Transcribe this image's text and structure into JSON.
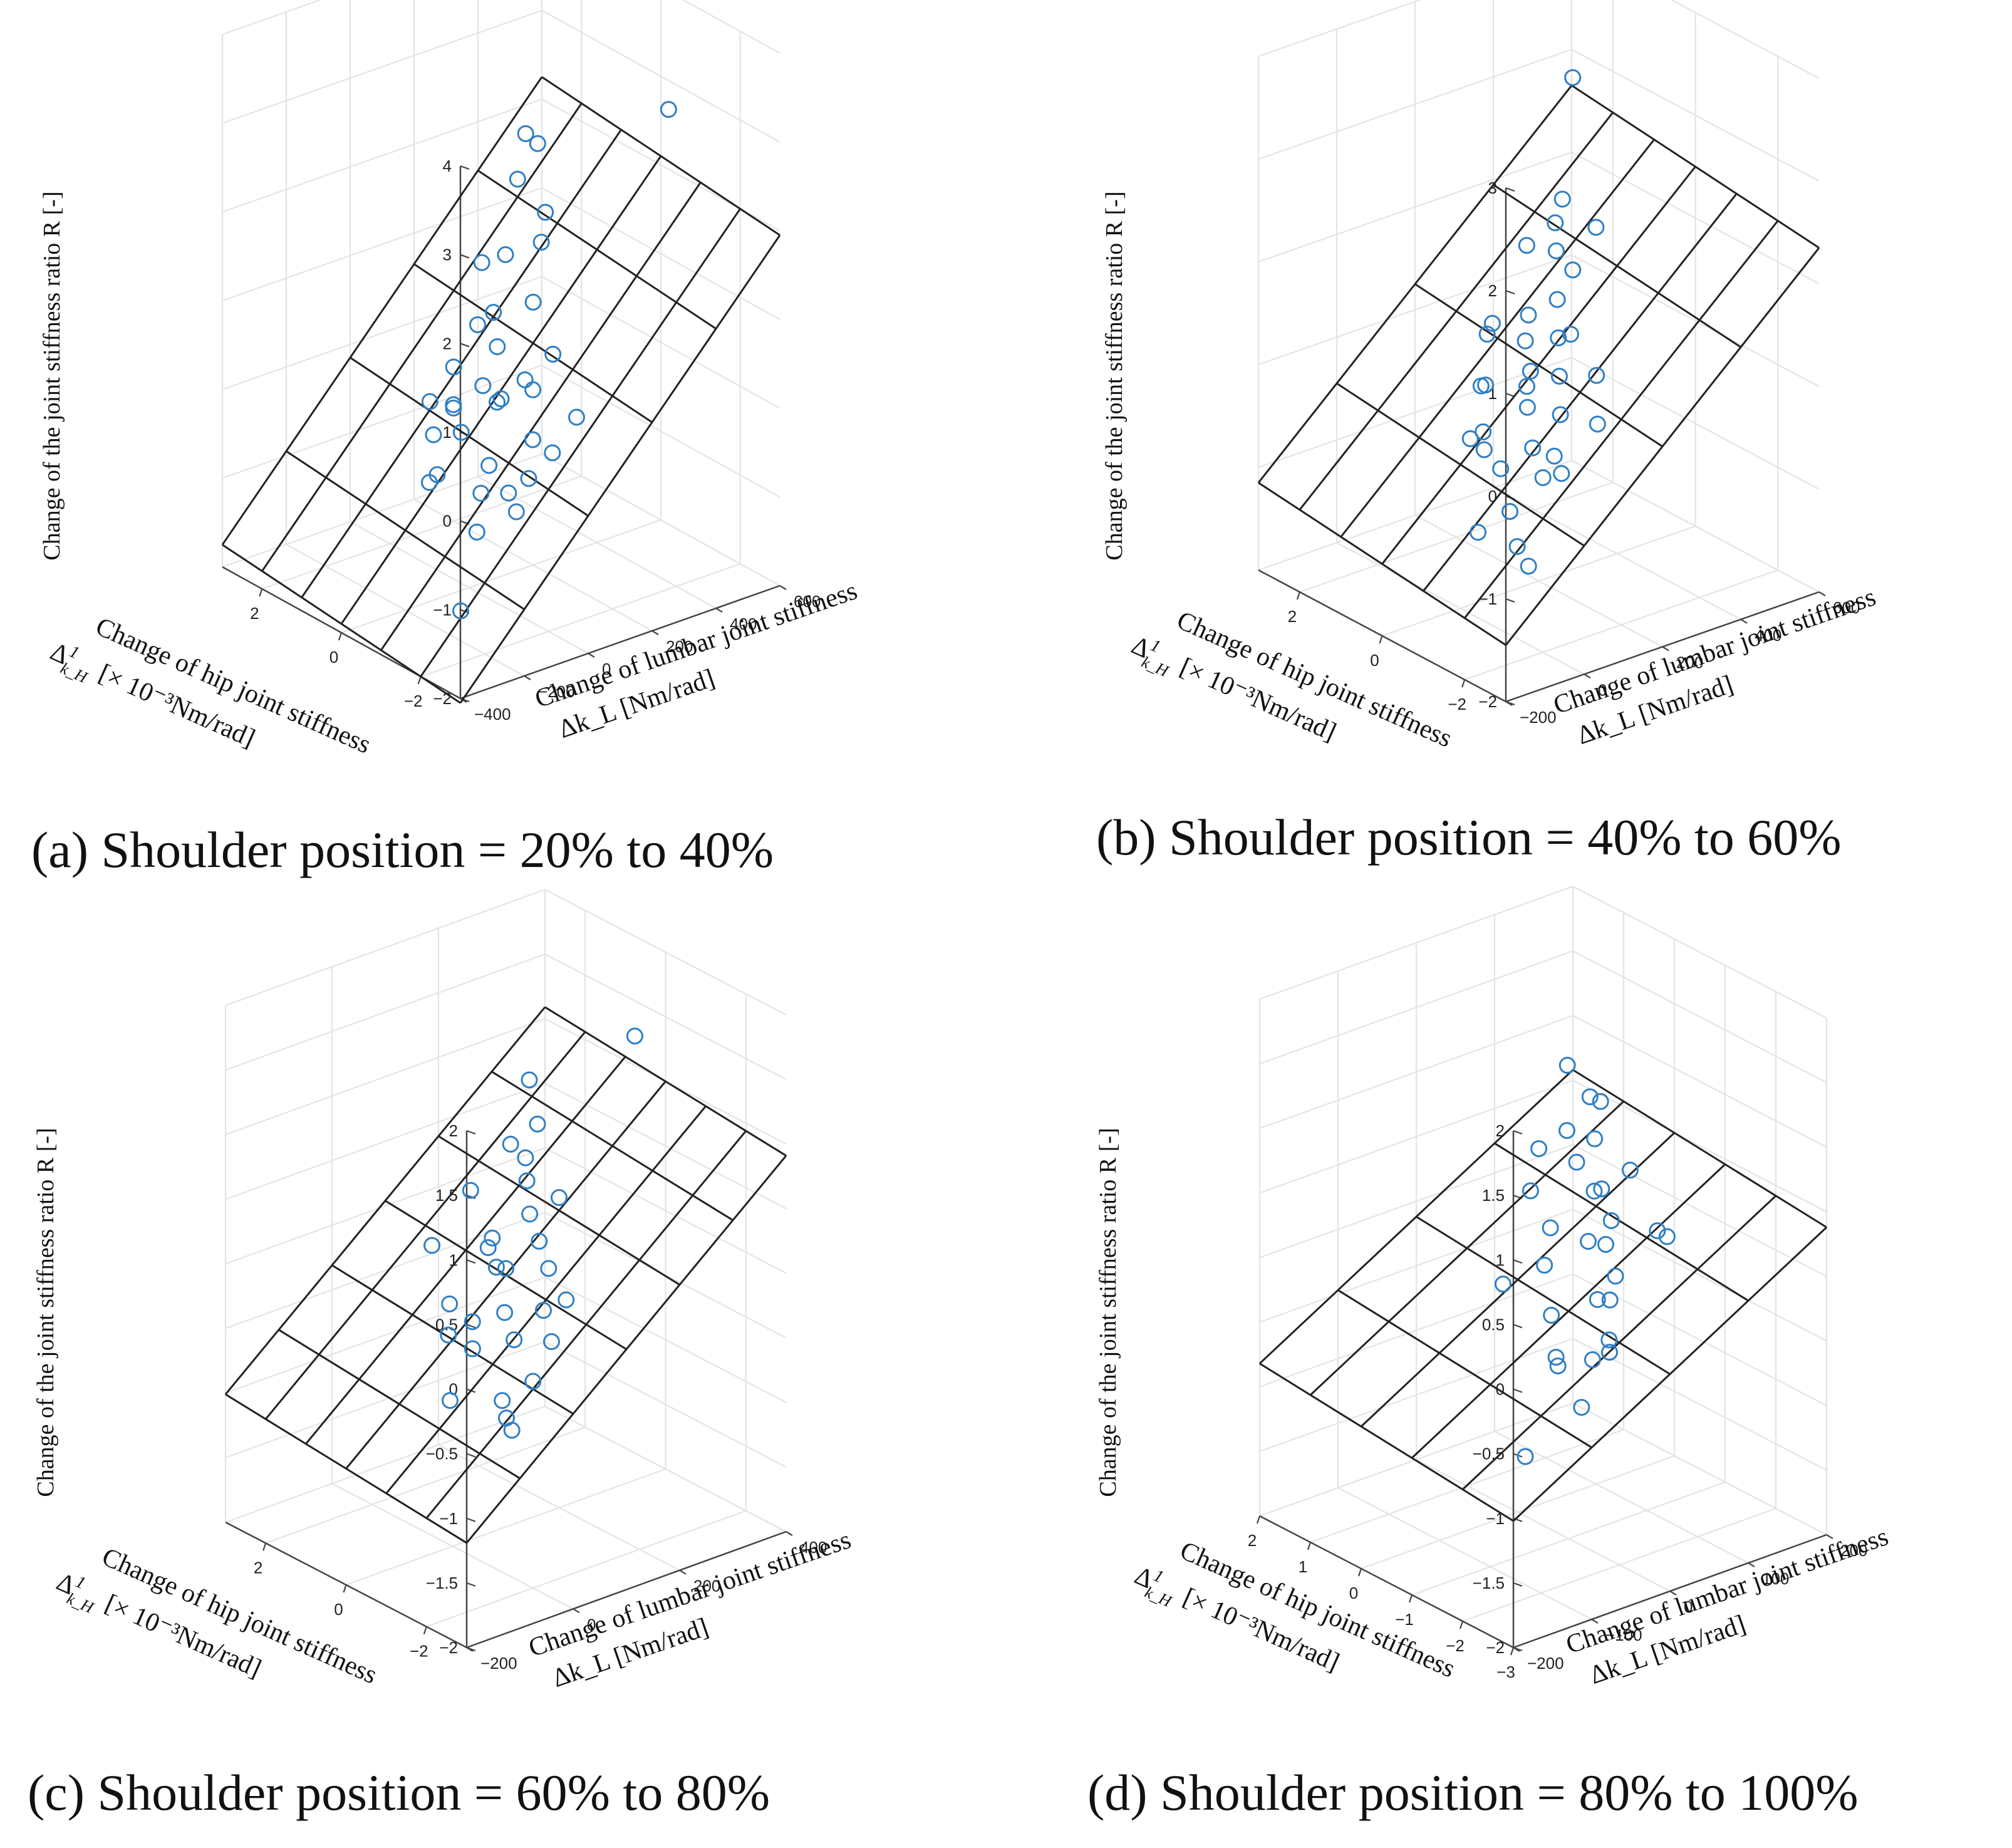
{
  "colors": {
    "marker": "#2f7fc4",
    "grid": "#e4e4e4",
    "axis": "#444444",
    "plane": "#222222"
  },
  "chart_data": [
    {
      "type": "scatter",
      "subtype": "3d-scatter-with-fitted-plane",
      "caption": "(a) Shoulder position = 20% to 40%",
      "zlabel": "Change of the joint stiffness ratio R [-]",
      "xlabel": "Change of hip joint stiffness",
      "xunit_prefix": "Δ",
      "xunit_num": "1",
      "xunit_den": "k_H",
      "xunit_rest": "[× 10⁻³Nm/rad]",
      "ylabel": "Change of lumbar joint stiffness",
      "yunit": "Δk_L [Nm/rad]",
      "xlim": [
        -3,
        3
      ],
      "ylim": [
        -400,
        600
      ],
      "zlim": [
        -2,
        4
      ],
      "xticks": [
        -2,
        0,
        2
      ],
      "xtick_labels": [
        "−2",
        "0",
        "2"
      ],
      "yticks": [
        -400,
        -200,
        0,
        200,
        400,
        600
      ],
      "ytick_labels": [
        "−400",
        "−200",
        "0",
        "200",
        "400",
        "600"
      ],
      "zticks": [
        -2,
        -1,
        0,
        1,
        2,
        3,
        4
      ],
      "ztick_labels": [
        "−2",
        "−1",
        "0",
        "1",
        "2",
        "3",
        "4"
      ],
      "plane": {
        "a": 0.05,
        "b": 0.004,
        "c": -0.3,
        "xgrid": [
          -3,
          -2,
          -1,
          0,
          1,
          2,
          3
        ],
        "ygrid": [
          -400,
          -200,
          0,
          200,
          400,
          600
        ]
      },
      "points": [
        {
          "x": -2.8,
          "y": -200,
          "z": -0.2
        },
        {
          "x": -2.2,
          "y": -150,
          "z": -0.2
        },
        {
          "x": -2.5,
          "y": -50,
          "z": 0.2
        },
        {
          "x": -1.8,
          "y": -250,
          "z": -1.5
        },
        {
          "x": -1.5,
          "y": 0,
          "z": -0.4
        },
        {
          "x": -1.2,
          "y": 50,
          "z": -0.1
        },
        {
          "x": -1.0,
          "y": -100,
          "z": -1.0
        },
        {
          "x": -0.8,
          "y": 100,
          "z": 0.3
        },
        {
          "x": -0.5,
          "y": 0,
          "z": -0.5
        },
        {
          "x": -0.3,
          "y": 50,
          "z": 0.1
        },
        {
          "x": 0.0,
          "y": 100,
          "z": 0.0
        },
        {
          "x": 0.2,
          "y": 0,
          "z": -0.3
        },
        {
          "x": 0.5,
          "y": 150,
          "z": 0.4
        },
        {
          "x": 0.8,
          "y": 50,
          "z": -0.2
        },
        {
          "x": 1.0,
          "y": 200,
          "z": 0.6
        },
        {
          "x": 1.2,
          "y": 100,
          "z": -0.4
        },
        {
          "x": 1.5,
          "y": 300,
          "z": 1.0
        },
        {
          "x": 1.8,
          "y": 250,
          "z": 0.2
        },
        {
          "x": 2.0,
          "y": 400,
          "z": 1.6
        },
        {
          "x": 2.2,
          "y": 450,
          "z": 2.0
        },
        {
          "x": 2.5,
          "y": 350,
          "z": 0.6
        },
        {
          "x": -1.0,
          "y": 500,
          "z": 3.0
        },
        {
          "x": 0.0,
          "y": -100,
          "z": -0.6
        },
        {
          "x": -0.5,
          "y": 200,
          "z": 0.5
        },
        {
          "x": 0.4,
          "y": 250,
          "z": 0.8
        },
        {
          "x": 1.0,
          "y": 350,
          "z": 1.2
        },
        {
          "x": 2.6,
          "y": 200,
          "z": -0.8
        },
        {
          "x": 0.6,
          "y": -50,
          "z": -0.9
        },
        {
          "x": -0.2,
          "y": 150,
          "z": 0.2
        },
        {
          "x": 0.3,
          "y": 80,
          "z": 0.1
        },
        {
          "x": -1.5,
          "y": 150,
          "z": 0.1
        },
        {
          "x": 1.6,
          "y": 150,
          "z": -0.1
        },
        {
          "x": 2.3,
          "y": 500,
          "z": 1.8
        },
        {
          "x": 0.9,
          "y": 0,
          "z": -0.5
        },
        {
          "x": -0.7,
          "y": -50,
          "z": -0.7
        },
        {
          "x": 1.3,
          "y": 400,
          "z": 1.4
        }
      ]
    },
    {
      "type": "scatter",
      "subtype": "3d-scatter-with-fitted-plane",
      "caption": "(b) Shoulder position = 40% to 60%",
      "zlabel": "Change of the joint stiffness ratio R [-]",
      "xlabel": "Change of hip joint stiffness",
      "xunit_prefix": "Δ",
      "xunit_num": "1",
      "xunit_den": "k_H",
      "xunit_rest": "[× 10⁻³Nm/rad]",
      "ylabel": "Change of lumbar joint stiffness",
      "yunit": "Δk_L [Nm/rad]",
      "xlim": [
        -3,
        3
      ],
      "ylim": [
        -200,
        600
      ],
      "zlim": [
        -2,
        3
      ],
      "xticks": [
        -2,
        0,
        2
      ],
      "xtick_labels": [
        "−2",
        "0",
        "2"
      ],
      "yticks": [
        -200,
        0,
        200,
        400,
        600
      ],
      "ytick_labels": [
        "−200",
        "0",
        "200",
        "400",
        "600"
      ],
      "zticks": [
        -2,
        -1,
        0,
        1,
        2,
        3
      ],
      "ztick_labels": [
        "−2",
        "−1",
        "0",
        "1",
        "2",
        "3"
      ],
      "plane": {
        "a": 0.05,
        "b": 0.0035,
        "c": -0.6,
        "xgrid": [
          -3,
          -2,
          -1,
          0,
          1,
          2,
          3
        ],
        "ygrid": [
          -200,
          0,
          200,
          400,
          600
        ]
      },
      "points": [
        {
          "x": -2.8,
          "y": -150,
          "z": -0.6
        },
        {
          "x": -2.6,
          "y": -100,
          "z": -0.9
        },
        {
          "x": -2.0,
          "y": 0,
          "z": -0.3
        },
        {
          "x": -1.8,
          "y": 50,
          "z": -0.2
        },
        {
          "x": -1.5,
          "y": 100,
          "z": -0.5
        },
        {
          "x": -1.2,
          "y": 0,
          "z": -0.8
        },
        {
          "x": -1.0,
          "y": 150,
          "z": -0.1
        },
        {
          "x": -0.8,
          "y": 100,
          "z": -0.4
        },
        {
          "x": -0.5,
          "y": 200,
          "z": 0.1
        },
        {
          "x": -0.2,
          "y": 150,
          "z": -0.2
        },
        {
          "x": 0.0,
          "y": 250,
          "z": 0.3
        },
        {
          "x": 0.2,
          "y": 200,
          "z": 0.0
        },
        {
          "x": 0.5,
          "y": 300,
          "z": 0.5
        },
        {
          "x": 0.8,
          "y": 250,
          "z": 0.1
        },
        {
          "x": 1.0,
          "y": 350,
          "z": 0.8
        },
        {
          "x": 1.2,
          "y": 300,
          "z": 0.2
        },
        {
          "x": 1.5,
          "y": 400,
          "z": 0.9
        },
        {
          "x": 1.8,
          "y": 450,
          "z": 1.0
        },
        {
          "x": 2.5,
          "y": 550,
          "z": 1.9
        },
        {
          "x": 2.2,
          "y": 300,
          "z": -0.2
        },
        {
          "x": -0.5,
          "y": 50,
          "z": -0.6
        },
        {
          "x": 0.4,
          "y": 100,
          "z": -0.5
        },
        {
          "x": 1.4,
          "y": 200,
          "z": -0.4
        },
        {
          "x": -1.4,
          "y": 200,
          "z": 0.3
        },
        {
          "x": 0.6,
          "y": 350,
          "z": 0.7
        },
        {
          "x": -0.9,
          "y": -50,
          "z": -1.0
        },
        {
          "x": 0.1,
          "y": 180,
          "z": -0.1
        },
        {
          "x": -0.3,
          "y": 250,
          "z": 0.4
        },
        {
          "x": 1.1,
          "y": 180,
          "z": -0.3
        },
        {
          "x": 2.0,
          "y": 380,
          "z": 0.6
        },
        {
          "x": -1.9,
          "y": 150,
          "z": 0.0
        },
        {
          "x": 0.9,
          "y": 120,
          "z": -0.7
        },
        {
          "x": 1.6,
          "y": 250,
          "z": 0.1
        },
        {
          "x": -0.1,
          "y": 50,
          "z": -0.5
        },
        {
          "x": 0.7,
          "y": 420,
          "z": 1.0
        }
      ]
    },
    {
      "type": "scatter",
      "subtype": "3d-scatter-with-fitted-plane",
      "caption": "(c) Shoulder position = 60% to 80%",
      "zlabel": "Change of the joint stiffness ratio R [-]",
      "xlabel": "Change of hip joint stiffness",
      "xunit_prefix": "Δ",
      "xunit_num": "1",
      "xunit_den": "k_H",
      "xunit_rest": "[× 10⁻³Nm/rad]",
      "ylabel": "Change of lumbar joint stiffness",
      "yunit": "Δk_L [Nm/rad]",
      "xlim": [
        -3,
        3
      ],
      "ylim": [
        -200,
        400
      ],
      "zlim": [
        -2,
        2
      ],
      "xticks": [
        -2,
        0,
        2
      ],
      "xtick_labels": [
        "−2",
        "0",
        "2"
      ],
      "yticks": [
        -200,
        0,
        200,
        400
      ],
      "ytick_labels": [
        "−200",
        "0",
        "200",
        "400"
      ],
      "zticks": [
        -2,
        -1.5,
        -1,
        -0.5,
        0,
        0.5,
        1,
        1.5,
        2
      ],
      "ztick_labels": [
        "−2",
        "−1.5",
        "−1",
        "−0.5",
        "0",
        "0.5",
        "1",
        "1.5",
        "2"
      ],
      "plane": {
        "a": 0.03,
        "b": 0.0035,
        "c": -0.4,
        "xgrid": [
          -3,
          -2,
          -1,
          0,
          1,
          2,
          3
        ],
        "ygrid": [
          -200,
          -100,
          0,
          100,
          200,
          300,
          400
        ]
      },
      "points": [
        {
          "x": -2.8,
          "y": -100,
          "z": -0.5
        },
        {
          "x": -2.4,
          "y": -80,
          "z": -0.5
        },
        {
          "x": -2.0,
          "y": 0,
          "z": -0.4
        },
        {
          "x": -1.8,
          "y": 50,
          "z": -0.2
        },
        {
          "x": -1.5,
          "y": -20,
          "z": -0.6
        },
        {
          "x": -1.2,
          "y": 80,
          "z": -0.1
        },
        {
          "x": -1.0,
          "y": 40,
          "z": -0.3
        },
        {
          "x": -0.8,
          "y": 120,
          "z": 0.1
        },
        {
          "x": -0.5,
          "y": 60,
          "z": -0.2
        },
        {
          "x": -0.3,
          "y": 140,
          "z": 0.2
        },
        {
          "x": 0.0,
          "y": 100,
          "z": 0.0
        },
        {
          "x": 0.2,
          "y": 160,
          "z": 0.3
        },
        {
          "x": 0.5,
          "y": 120,
          "z": -0.1
        },
        {
          "x": 0.8,
          "y": 200,
          "z": 0.4
        },
        {
          "x": 1.0,
          "y": 150,
          "z": 0.0
        },
        {
          "x": 1.2,
          "y": 250,
          "z": 0.7
        },
        {
          "x": 1.5,
          "y": 180,
          "z": -0.2
        },
        {
          "x": 1.8,
          "y": 280,
          "z": 0.9
        },
        {
          "x": 2.2,
          "y": 200,
          "z": 0.1
        },
        {
          "x": 2.5,
          "y": 150,
          "z": -0.3
        },
        {
          "x": 0.5,
          "y": 380,
          "z": 1.3
        },
        {
          "x": -0.6,
          "y": -50,
          "z": -0.7
        },
        {
          "x": 0.3,
          "y": 60,
          "z": -0.4
        },
        {
          "x": 1.4,
          "y": 100,
          "z": -0.5
        },
        {
          "x": -1.5,
          "y": 100,
          "z": 0.0
        },
        {
          "x": 0.0,
          "y": 200,
          "z": 0.4
        },
        {
          "x": 0.9,
          "y": 60,
          "z": -0.6
        },
        {
          "x": 2.0,
          "y": 260,
          "z": 0.4
        },
        {
          "x": -0.1,
          "y": 30,
          "z": -0.5
        },
        {
          "x": 1.1,
          "y": 220,
          "z": 0.5
        }
      ]
    },
    {
      "type": "scatter",
      "subtype": "3d-scatter-with-fitted-plane",
      "caption": "(d) Shoulder position = 80% to 100%",
      "zlabel": "Change of the joint stiffness ratio R [-]",
      "xlabel": "Change of hip joint stiffness",
      "xunit_prefix": "Δ",
      "xunit_num": "1",
      "xunit_den": "k_H",
      "xunit_rest": "[× 10⁻³Nm/rad]",
      "ylabel": "Change of lumbar joint stiffness",
      "yunit": "Δk_L [Nm/rad]",
      "xlim": [
        -3,
        2
      ],
      "ylim": [
        -200,
        200
      ],
      "zlim": [
        -2,
        2
      ],
      "xticks": [
        -3,
        -2,
        -1,
        0,
        1,
        2
      ],
      "xtick_labels": [
        "−3",
        "−2",
        "−1",
        "0",
        "1",
        "2"
      ],
      "yticks": [
        -200,
        -100,
        0,
        100,
        200
      ],
      "ytick_labels": [
        "−200",
        "−100",
        "0",
        "100",
        "200"
      ],
      "zticks": [
        -2,
        -1.5,
        -1,
        -0.5,
        0,
        0.5,
        1,
        1.5,
        2
      ],
      "ztick_labels": [
        "−2",
        "−1.5",
        "−1",
        "−0.5",
        "0",
        "0.5",
        "1",
        "1.5",
        "2"
      ],
      "plane": {
        "a": 0.04,
        "b": 0.0035,
        "c": -0.2,
        "xgrid": [
          -3,
          -2,
          -1,
          0,
          1,
          2
        ],
        "ygrid": [
          -200,
          -100,
          0,
          100,
          200
        ]
      },
      "points": [
        {
          "x": -2.8,
          "y": -100,
          "z": -0.4
        },
        {
          "x": -2.4,
          "y": -60,
          "z": -0.2
        },
        {
          "x": -2.0,
          "y": -120,
          "z": -0.9
        },
        {
          "x": -1.8,
          "y": 0,
          "z": -0.3
        },
        {
          "x": -1.5,
          "y": 20,
          "z": -0.5
        },
        {
          "x": -1.2,
          "y": 40,
          "z": -0.2
        },
        {
          "x": -1.0,
          "y": 60,
          "z": -0.1
        },
        {
          "x": -0.8,
          "y": 50,
          "z": -0.3
        },
        {
          "x": -0.5,
          "y": 80,
          "z": 0.0
        },
        {
          "x": -0.3,
          "y": 100,
          "z": 0.1
        },
        {
          "x": 0.0,
          "y": 90,
          "z": -0.1
        },
        {
          "x": 0.2,
          "y": 120,
          "z": 0.2
        },
        {
          "x": 0.5,
          "y": 130,
          "z": 0.1
        },
        {
          "x": 0.8,
          "y": 150,
          "z": 0.4
        },
        {
          "x": 1.0,
          "y": 140,
          "z": 0.2
        },
        {
          "x": 1.2,
          "y": 170,
          "z": 0.6
        },
        {
          "x": 1.5,
          "y": 160,
          "z": 0.3
        },
        {
          "x": 1.8,
          "y": 180,
          "z": 0.7
        },
        {
          "x": 1.6,
          "y": 120,
          "z": -0.1
        },
        {
          "x": -0.2,
          "y": 30,
          "z": -0.5
        },
        {
          "x": 0.4,
          "y": 60,
          "z": -0.3
        },
        {
          "x": -1.4,
          "y": 100,
          "z": 0.2
        },
        {
          "x": 0.9,
          "y": 100,
          "z": -0.2
        },
        {
          "x": -0.6,
          "y": 10,
          "z": -0.7
        },
        {
          "x": 0.1,
          "y": 150,
          "z": 0.3
        },
        {
          "x": 1.3,
          "y": 190,
          "z": 0.5
        },
        {
          "x": -0.9,
          "y": 120,
          "z": 0.1
        },
        {
          "x": 0.6,
          "y": 20,
          "z": -0.4
        },
        {
          "x": 1.9,
          "y": 150,
          "z": 0.1
        },
        {
          "x": -1.1,
          "y": -20,
          "z": -0.6
        }
      ]
    }
  ]
}
